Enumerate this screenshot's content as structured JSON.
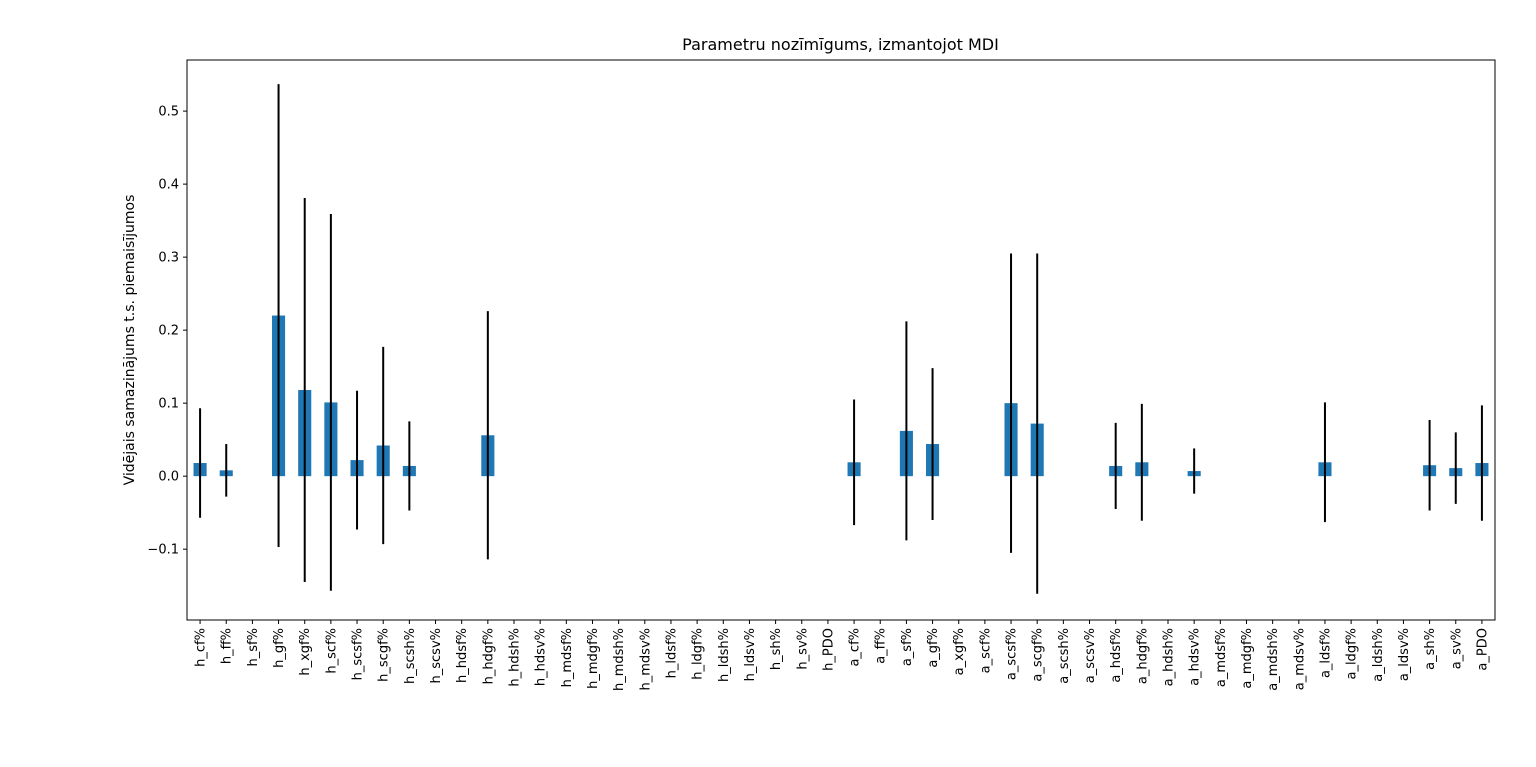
{
  "chart_data": {
    "type": "bar",
    "title": "Parametru nozīmīgums, izmantojot MDI",
    "xlabel": "",
    "ylabel": "Vidējais samazinājums t.s. piemaisījumos",
    "ylim": [
      -0.197,
      0.57
    ],
    "yticks": [
      -0.1,
      0.0,
      0.1,
      0.2,
      0.3,
      0.4,
      0.5
    ],
    "ytick_labels": [
      "−0.1",
      "0.0",
      "0.1",
      "0.2",
      "0.3",
      "0.4",
      "0.5"
    ],
    "grid": false,
    "bar_color": "#1f77b4",
    "error_color": "#000000",
    "categories": [
      "h_cf%",
      "h_ff%",
      "h_sf%",
      "h_gf%",
      "h_xgf%",
      "h_scf%",
      "h_scsf%",
      "h_scgf%",
      "h_scsh%",
      "h_scsv%",
      "h_hdsf%",
      "h_hdgf%",
      "h_hdsh%",
      "h_hdsv%",
      "h_mdsf%",
      "h_mdgf%",
      "h_mdsh%",
      "h_mdsv%",
      "h_ldsf%",
      "h_ldgf%",
      "h_ldsh%",
      "h_ldsv%",
      "h_sh%",
      "h_sv%",
      "h_PDO",
      "a_cf%",
      "a_ff%",
      "a_sf%",
      "a_gf%",
      "a_xgf%",
      "a_scf%",
      "a_scsf%",
      "a_scgf%",
      "a_scsh%",
      "a_scsv%",
      "a_hdsf%",
      "a_hdgf%",
      "a_hdsh%",
      "a_hdsv%",
      "a_mdsf%",
      "a_mdgf%",
      "a_mdsh%",
      "a_mdsv%",
      "a_ldsf%",
      "a_ldgf%",
      "a_ldsh%",
      "a_ldsv%",
      "a_sh%",
      "a_sv%",
      "a_PDO"
    ],
    "values": [
      0.018,
      0.008,
      0,
      0.22,
      0.118,
      0.101,
      0.022,
      0.042,
      0.014,
      0,
      0,
      0.056,
      0,
      0,
      0,
      0,
      0,
      0,
      0,
      0,
      0,
      0,
      0,
      0,
      0,
      0.019,
      0,
      0.062,
      0.044,
      0,
      0,
      0.1,
      0.072,
      0,
      0,
      0.014,
      0.019,
      0,
      0.007,
      0,
      0,
      0,
      0,
      0.019,
      0,
      0,
      0,
      0.015,
      0.011,
      0.018
    ],
    "errors": [
      0.075,
      0.036,
      0,
      0.317,
      0.263,
      0.258,
      0.095,
      0.135,
      0.061,
      0,
      0,
      0.17,
      0,
      0,
      0,
      0,
      0,
      0,
      0,
      0,
      0,
      0,
      0,
      0,
      0,
      0.086,
      0,
      0.15,
      0.104,
      0,
      0,
      0.205,
      0.233,
      0,
      0,
      0.059,
      0.08,
      0,
      0.031,
      0,
      0,
      0,
      0,
      0.082,
      0,
      0,
      0,
      0.062,
      0.049,
      0.079
    ]
  }
}
